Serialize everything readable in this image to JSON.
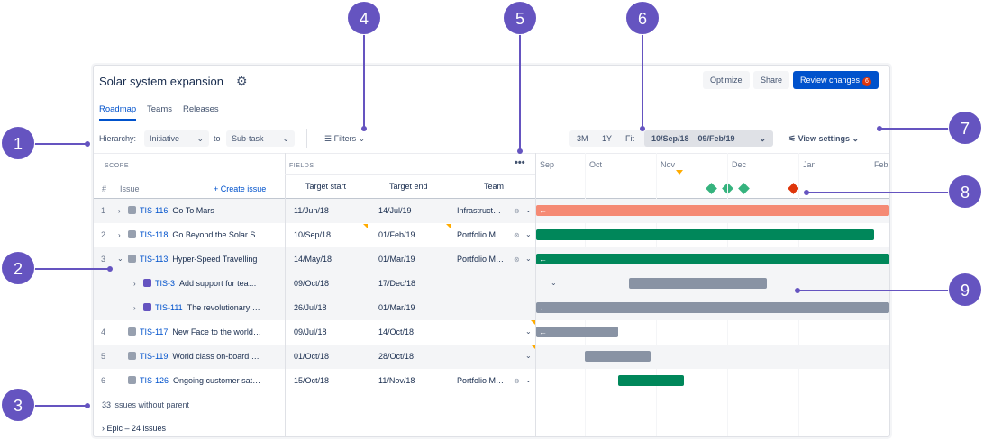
{
  "header": {
    "title": "Solar system expansion",
    "optimize": "Optimize",
    "share": "Share",
    "review": "Review changes",
    "review_count": "6"
  },
  "tabs": [
    "Roadmap",
    "Teams",
    "Releases"
  ],
  "toolbar": {
    "hierarchy_label": "Hierarchy:",
    "hierarchy_from": "Initiative",
    "to": "to",
    "hierarchy_to": "Sub-task",
    "filters": "Filters",
    "range_3m": "3M",
    "range_1y": "1Y",
    "range_fit": "Fit",
    "date_range": "10/Sep/18 – 09/Feb/19",
    "view_settings": "View settings"
  },
  "columns": {
    "scope": "SCOPE",
    "fields": "FIELDS",
    "num": "#",
    "issue": "Issue",
    "create": "+ Create issue",
    "target_start": "Target start",
    "target_end": "Target end",
    "team": "Team"
  },
  "months": [
    "Sep",
    "Oct",
    "Nov",
    "Dec",
    "Jan",
    "Feb"
  ],
  "rows": [
    {
      "num": "1",
      "key": "TIS-116",
      "summary": "Go To Mars",
      "start": "11/Jun/18",
      "end": "14/Jul/19",
      "team": "Infrastruct…",
      "type": "epic"
    },
    {
      "num": "2",
      "key": "TIS-118",
      "summary": "Go Beyond the Solar S…",
      "start": "10/Sep/18",
      "end": "01/Feb/19",
      "team": "Portfolio M…",
      "type": "epic"
    },
    {
      "num": "3",
      "key": "TIS-113",
      "summary": "Hyper-Speed Travelling",
      "start": "14/May/18",
      "end": "01/Mar/19",
      "team": "Portfolio M…",
      "type": "epic"
    },
    {
      "num": "",
      "key": "TIS-3",
      "summary": "Add support for tea…",
      "start": "09/Oct/18",
      "end": "17/Dec/18",
      "team": "",
      "type": "story"
    },
    {
      "num": "",
      "key": "TIS-111",
      "summary": "The revolutionary …",
      "start": "26/Jul/18",
      "end": "01/Mar/19",
      "team": "",
      "type": "story"
    },
    {
      "num": "4",
      "key": "TIS-117",
      "summary": "New Face to the world…",
      "start": "09/Jul/18",
      "end": "14/Oct/18",
      "team": "",
      "type": "epic"
    },
    {
      "num": "5",
      "key": "TIS-119",
      "summary": "World class on-board …",
      "start": "01/Oct/18",
      "end": "28/Oct/18",
      "team": "",
      "type": "epic"
    },
    {
      "num": "6",
      "key": "TIS-126",
      "summary": "Ongoing customer sat…",
      "start": "15/Oct/18",
      "end": "11/Nov/18",
      "team": "Portfolio M…",
      "type": "epic"
    }
  ],
  "footer": {
    "without_parent": "33 issues without parent",
    "epic_group": "Epic – 24 issues"
  },
  "callouts": [
    "1",
    "2",
    "3",
    "4",
    "5",
    "6",
    "7",
    "8",
    "9"
  ],
  "colors": {
    "accent": "#6554c0",
    "primary": "#0052cc",
    "red_bar": "#f58a74",
    "green_bar": "#00875a",
    "grey_bar": "#8993a4",
    "today_line": "#ffab00"
  }
}
